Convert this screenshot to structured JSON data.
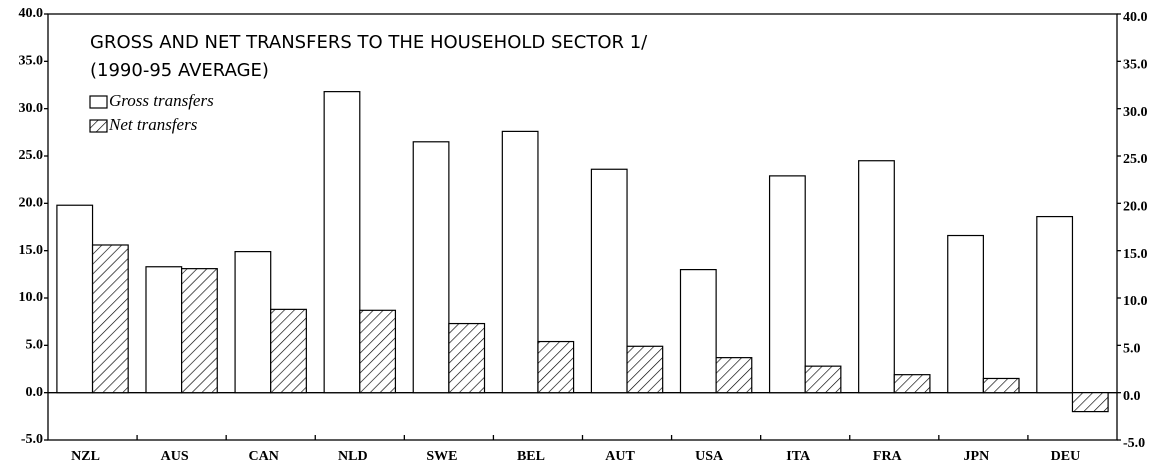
{
  "chart_data": {
    "type": "bar",
    "title": "GROSS AND NET TRANSFERS TO THE HOUSEHOLD SECTOR 1/",
    "subtitle": "(1990-95 AVERAGE)",
    "categories": [
      "NZL",
      "AUS",
      "CAN",
      "NLD",
      "SWE",
      "BEL",
      "AUT",
      "USA",
      "ITA",
      "FRA",
      "JPN",
      "DEU"
    ],
    "series": [
      {
        "name": "Gross transfers",
        "color": "#ffffff",
        "values": [
          19.8,
          13.3,
          14.9,
          31.8,
          26.5,
          27.6,
          23.6,
          13.0,
          22.9,
          24.5,
          16.6,
          18.6
        ]
      },
      {
        "name": "Net transfers",
        "color": "#000000",
        "hatch": true,
        "values": [
          15.6,
          13.1,
          8.8,
          8.7,
          7.3,
          5.4,
          4.9,
          3.7,
          2.8,
          1.9,
          1.5,
          -2.0
        ]
      }
    ],
    "ylim": [
      -5,
      40
    ],
    "yticks": [
      {
        "value": -5,
        "label": "-5.0"
      },
      {
        "value": 0,
        "label": "0.0"
      },
      {
        "value": 5,
        "label": "5.0"
      },
      {
        "value": 10,
        "label": "10.0"
      },
      {
        "value": 15,
        "label": "15.0"
      },
      {
        "value": 20,
        "label": "20.0"
      },
      {
        "value": 25,
        "label": "25.0"
      },
      {
        "value": 30,
        "label": "30.0"
      },
      {
        "value": 35,
        "label": "35.0"
      },
      {
        "value": 40,
        "label": "40.0"
      }
    ],
    "y2lim": [
      -5,
      40
    ],
    "y2ticks": [
      {
        "value": -5,
        "label": "-5.0"
      },
      {
        "value": 0,
        "label": "0.0"
      },
      {
        "value": 5,
        "label": "5.0"
      },
      {
        "value": 10,
        "label": "10.0"
      },
      {
        "value": 15,
        "label": "15.0"
      },
      {
        "value": 20,
        "label": "20.0"
      },
      {
        "value": 25,
        "label": "25.0"
      },
      {
        "value": 30,
        "label": "30.0"
      },
      {
        "value": 35,
        "label": "35.0"
      },
      {
        "value": 40,
        "label": "40.0"
      }
    ],
    "grid": false,
    "legend": "upper left"
  }
}
